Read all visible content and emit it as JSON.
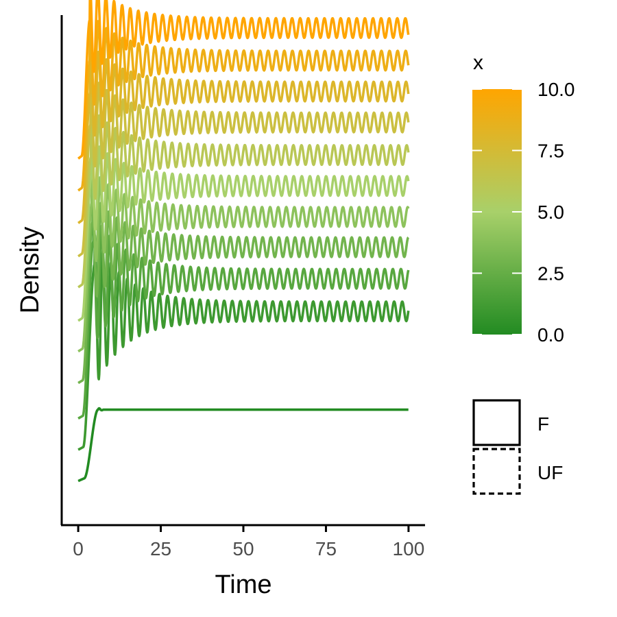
{
  "chart_data": {
    "type": "line",
    "xlabel": "Time",
    "ylabel": "Density",
    "xlim": [
      -5,
      105
    ],
    "x_ticks": [
      0,
      25,
      50,
      75,
      100
    ],
    "x_tick_labels": [
      "0",
      "25",
      "50",
      "75",
      "100"
    ],
    "y_ticks_shown": false,
    "grid": false,
    "color_legend": {
      "title": "x",
      "min": 0.0,
      "max": 10.0,
      "ticks": [
        0.0,
        2.5,
        5.0,
        7.5,
        10.0
      ],
      "tick_labels": [
        "0.0",
        "2.5",
        "5.0",
        "7.5",
        "10.0"
      ],
      "low_color": "#228B22",
      "mid_color": "#A8D06A",
      "high_color": "#FFA500",
      "placement": "right"
    },
    "linetype_legend": {
      "entries": [
        {
          "label": "F",
          "style": "solid"
        },
        {
          "label": "UF",
          "style": "dashed"
        }
      ],
      "placement": "right"
    },
    "series_x_range": [
      0,
      100
    ],
    "series": [
      {
        "x_value": 0.0,
        "start": -9.6,
        "peak": 12.3,
        "plateau": 12.3,
        "amplitude": 0,
        "rise_time": 6
      },
      {
        "x_value": 1.0,
        "start": 0.0,
        "peak": 57,
        "plateau": 42.5,
        "amplitude": 3.0,
        "rise_time": 5
      },
      {
        "x_value": 2.0,
        "start": 9.6,
        "peak": 64,
        "plateau": 52.5,
        "amplitude": 3.0,
        "rise_time": 4.6
      },
      {
        "x_value": 3.0,
        "start": 20.5,
        "peak": 70,
        "plateau": 62.2,
        "amplitude": 3.0,
        "rise_time": 4.4
      },
      {
        "x_value": 4.0,
        "start": 30.2,
        "peak": 76,
        "plateau": 71.5,
        "amplitude": 3.0,
        "rise_time": 4.2
      },
      {
        "x_value": 5.0,
        "start": 39.6,
        "peak": 84,
        "plateau": 81,
        "amplitude": 3.0,
        "rise_time": 4
      },
      {
        "x_value": 6.0,
        "start": 49.9,
        "peak": 90,
        "plateau": 90.5,
        "amplitude": 3.0,
        "rise_time": 3.9
      },
      {
        "x_value": 7.0,
        "start": 59.4,
        "peak": 100,
        "plateau": 100.5,
        "amplitude": 3.0,
        "rise_time": 3.8
      },
      {
        "x_value": 8.0,
        "start": 69.6,
        "peak": 110,
        "plateau": 110,
        "amplitude": 3.0,
        "rise_time": 3.7
      },
      {
        "x_value": 9.0,
        "start": 79.6,
        "peak": 120,
        "plateau": 119.5,
        "amplitude": 3.0,
        "rise_time": 3.6
      },
      {
        "x_value": 10.0,
        "start": 89.4,
        "peak": 132,
        "plateau": 129.5,
        "amplitude": 3.0,
        "rise_time": 3.5
      }
    ],
    "line_style_all_series": "solid"
  }
}
